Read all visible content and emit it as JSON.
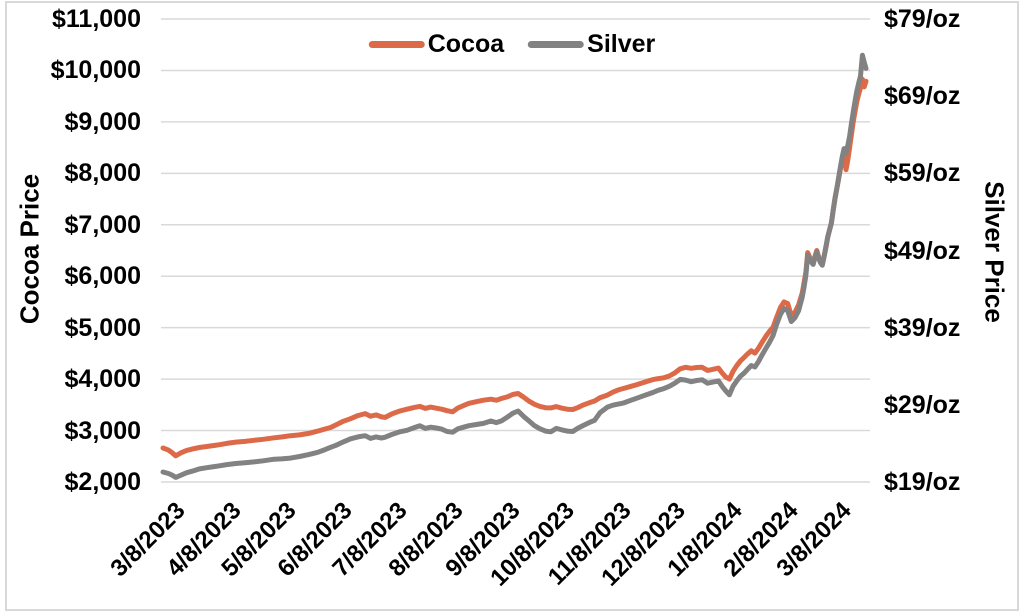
{
  "colors": {
    "cocoa": "#DC6A49",
    "silver": "#828282",
    "gridline": "#D9D9D9",
    "border": "#D8D8D8",
    "text": "#000000",
    "background": "#FFFFFF"
  },
  "chart_data": {
    "type": "line",
    "title": "",
    "legend_position": "top-center",
    "grid": "horizontal",
    "x_axis": {
      "tick_labels": [
        "3/8/2023",
        "4/8/2023",
        "5/8/2023",
        "6/8/2023",
        "7/8/2023",
        "8/8/2023",
        "9/8/2023",
        "10/8/2023",
        "11/8/2023",
        "12/8/2023",
        "1/8/2024",
        "2/8/2024",
        "3/8/2024"
      ],
      "tick_days": [
        0,
        31,
        61,
        92,
        122,
        153,
        184,
        214,
        245,
        275,
        306,
        337,
        366
      ],
      "domain_days": [
        0,
        386
      ]
    },
    "left_axis": {
      "label": "Cocoa Price",
      "tick_labels": [
        "$11,000",
        "$10,000",
        "$9,000",
        "$8,000",
        "$7,000",
        "$6,000",
        "$5,000",
        "$4,000",
        "$3,000",
        "$2,000"
      ],
      "min": 2000,
      "max": 11000
    },
    "right_axis": {
      "label": "Silver Price",
      "tick_labels": [
        "$79/oz",
        "$69/oz",
        "$59/oz",
        "$49/oz",
        "$39/oz",
        "$29/oz",
        "$19/oz"
      ],
      "min": 19,
      "max": 79
    },
    "series": [
      {
        "name": "Cocoa",
        "color": "#DC6A49",
        "axis": "left",
        "points": [
          [
            0,
            2660
          ],
          [
            3,
            2620
          ],
          [
            5,
            2570
          ],
          [
            7,
            2510
          ],
          [
            10,
            2570
          ],
          [
            13,
            2615
          ],
          [
            16,
            2640
          ],
          [
            20,
            2670
          ],
          [
            24,
            2690
          ],
          [
            28,
            2710
          ],
          [
            31,
            2725
          ],
          [
            35,
            2750
          ],
          [
            40,
            2775
          ],
          [
            45,
            2790
          ],
          [
            50,
            2810
          ],
          [
            55,
            2830
          ],
          [
            61,
            2860
          ],
          [
            65,
            2875
          ],
          [
            70,
            2900
          ],
          [
            75,
            2915
          ],
          [
            80,
            2945
          ],
          [
            85,
            2990
          ],
          [
            89,
            3030
          ],
          [
            92,
            3060
          ],
          [
            95,
            3110
          ],
          [
            99,
            3180
          ],
          [
            103,
            3230
          ],
          [
            107,
            3290
          ],
          [
            111,
            3330
          ],
          [
            114,
            3280
          ],
          [
            117,
            3305
          ],
          [
            120,
            3265
          ],
          [
            122,
            3255
          ],
          [
            126,
            3330
          ],
          [
            130,
            3380
          ],
          [
            134,
            3415
          ],
          [
            138,
            3450
          ],
          [
            141,
            3470
          ],
          [
            144,
            3430
          ],
          [
            147,
            3455
          ],
          [
            150,
            3435
          ],
          [
            153,
            3415
          ],
          [
            156,
            3385
          ],
          [
            159,
            3365
          ],
          [
            162,
            3440
          ],
          [
            165,
            3485
          ],
          [
            168,
            3530
          ],
          [
            172,
            3560
          ],
          [
            176,
            3590
          ],
          [
            180,
            3610
          ],
          [
            183,
            3590
          ],
          [
            186,
            3625
          ],
          [
            189,
            3655
          ],
          [
            192,
            3700
          ],
          [
            195,
            3720
          ],
          [
            198,
            3650
          ],
          [
            201,
            3570
          ],
          [
            204,
            3510
          ],
          [
            207,
            3470
          ],
          [
            210,
            3445
          ],
          [
            213,
            3440
          ],
          [
            216,
            3465
          ],
          [
            219,
            3435
          ],
          [
            222,
            3415
          ],
          [
            225,
            3410
          ],
          [
            228,
            3450
          ],
          [
            231,
            3500
          ],
          [
            234,
            3540
          ],
          [
            237,
            3575
          ],
          [
            240,
            3640
          ],
          [
            244,
            3690
          ],
          [
            247,
            3745
          ],
          [
            250,
            3790
          ],
          [
            253,
            3820
          ],
          [
            257,
            3860
          ],
          [
            260,
            3890
          ],
          [
            263,
            3925
          ],
          [
            266,
            3960
          ],
          [
            269,
            3990
          ],
          [
            272,
            4010
          ],
          [
            275,
            4025
          ],
          [
            278,
            4060
          ],
          [
            281,
            4120
          ],
          [
            284,
            4200
          ],
          [
            287,
            4230
          ],
          [
            290,
            4210
          ],
          [
            293,
            4225
          ],
          [
            296,
            4230
          ],
          [
            299,
            4170
          ],
          [
            302,
            4190
          ],
          [
            305,
            4215
          ],
          [
            307,
            4120
          ],
          [
            309,
            4040
          ],
          [
            311,
            4000
          ],
          [
            313,
            4150
          ],
          [
            315,
            4260
          ],
          [
            317,
            4350
          ],
          [
            319,
            4420
          ],
          [
            321,
            4490
          ],
          [
            323,
            4550
          ],
          [
            325,
            4505
          ],
          [
            327,
            4600
          ],
          [
            329,
            4720
          ],
          [
            331,
            4830
          ],
          [
            333,
            4930
          ],
          [
            335,
            5010
          ],
          [
            337,
            5210
          ],
          [
            339,
            5390
          ],
          [
            341,
            5500
          ],
          [
            343,
            5470
          ],
          [
            345,
            5230
          ],
          [
            347,
            5300
          ],
          [
            349,
            5440
          ],
          [
            351,
            5680
          ],
          [
            352,
            5880
          ],
          [
            353,
            6080
          ],
          [
            354,
            6460
          ],
          [
            355,
            6380
          ],
          [
            356,
            6300
          ],
          [
            357,
            6250
          ],
          [
            358,
            6390
          ],
          [
            359,
            6500
          ],
          [
            360,
            6380
          ],
          [
            361,
            6280
          ],
          [
            362,
            6230
          ],
          [
            363,
            6390
          ],
          [
            364,
            6550
          ],
          [
            365,
            6760
          ],
          [
            366,
            6900
          ],
          [
            367,
            7030
          ],
          [
            368,
            7280
          ],
          [
            369,
            7520
          ],
          [
            370,
            7710
          ],
          [
            371,
            7900
          ],
          [
            372,
            8090
          ],
          [
            373,
            8280
          ],
          [
            374,
            8420
          ],
          [
            375,
            8070
          ],
          [
            376,
            8260
          ],
          [
            377,
            8500
          ],
          [
            378,
            8750
          ],
          [
            379,
            9010
          ],
          [
            380,
            9210
          ],
          [
            381,
            9400
          ],
          [
            382,
            9540
          ],
          [
            383,
            9660
          ],
          [
            384,
            9830
          ],
          [
            385,
            9680
          ],
          [
            386,
            9790
          ]
        ]
      },
      {
        "name": "Silver",
        "color": "#828282",
        "axis": "right",
        "points": [
          [
            0,
            20.3
          ],
          [
            3,
            20.1
          ],
          [
            5,
            19.9
          ],
          [
            7,
            19.6
          ],
          [
            10,
            19.9
          ],
          [
            13,
            20.2
          ],
          [
            16,
            20.4
          ],
          [
            20,
            20.7
          ],
          [
            24,
            20.85
          ],
          [
            28,
            21.0
          ],
          [
            31,
            21.1
          ],
          [
            35,
            21.25
          ],
          [
            40,
            21.4
          ],
          [
            45,
            21.5
          ],
          [
            50,
            21.6
          ],
          [
            55,
            21.75
          ],
          [
            61,
            21.95
          ],
          [
            65,
            22.0
          ],
          [
            70,
            22.1
          ],
          [
            75,
            22.3
          ],
          [
            80,
            22.55
          ],
          [
            85,
            22.85
          ],
          [
            89,
            23.2
          ],
          [
            92,
            23.5
          ],
          [
            95,
            23.75
          ],
          [
            99,
            24.2
          ],
          [
            103,
            24.6
          ],
          [
            107,
            24.85
          ],
          [
            111,
            25.0
          ],
          [
            114,
            24.65
          ],
          [
            117,
            24.85
          ],
          [
            120,
            24.7
          ],
          [
            122,
            24.8
          ],
          [
            126,
            25.2
          ],
          [
            130,
            25.5
          ],
          [
            134,
            25.7
          ],
          [
            138,
            26.05
          ],
          [
            141,
            26.3
          ],
          [
            144,
            25.95
          ],
          [
            147,
            26.1
          ],
          [
            150,
            26.0
          ],
          [
            153,
            25.85
          ],
          [
            156,
            25.55
          ],
          [
            159,
            25.45
          ],
          [
            162,
            25.9
          ],
          [
            165,
            26.1
          ],
          [
            168,
            26.3
          ],
          [
            172,
            26.45
          ],
          [
            176,
            26.6
          ],
          [
            180,
            26.9
          ],
          [
            183,
            26.7
          ],
          [
            186,
            26.95
          ],
          [
            189,
            27.4
          ],
          [
            192,
            27.9
          ],
          [
            195,
            28.2
          ],
          [
            198,
            27.5
          ],
          [
            201,
            26.9
          ],
          [
            204,
            26.3
          ],
          [
            207,
            25.9
          ],
          [
            210,
            25.6
          ],
          [
            213,
            25.5
          ],
          [
            216,
            25.95
          ],
          [
            219,
            25.75
          ],
          [
            222,
            25.6
          ],
          [
            225,
            25.55
          ],
          [
            228,
            26.0
          ],
          [
            231,
            26.35
          ],
          [
            234,
            26.7
          ],
          [
            237,
            27.0
          ],
          [
            240,
            28.0
          ],
          [
            244,
            28.7
          ],
          [
            247,
            28.95
          ],
          [
            250,
            29.1
          ],
          [
            253,
            29.25
          ],
          [
            257,
            29.6
          ],
          [
            260,
            29.85
          ],
          [
            263,
            30.1
          ],
          [
            266,
            30.35
          ],
          [
            269,
            30.6
          ],
          [
            272,
            30.9
          ],
          [
            275,
            31.1
          ],
          [
            278,
            31.4
          ],
          [
            281,
            31.8
          ],
          [
            284,
            32.3
          ],
          [
            287,
            32.2
          ],
          [
            290,
            32.0
          ],
          [
            293,
            32.15
          ],
          [
            296,
            32.25
          ],
          [
            299,
            31.8
          ],
          [
            302,
            31.95
          ],
          [
            305,
            32.1
          ],
          [
            307,
            31.4
          ],
          [
            309,
            30.8
          ],
          [
            311,
            30.3
          ],
          [
            313,
            31.4
          ],
          [
            315,
            32.1
          ],
          [
            317,
            32.7
          ],
          [
            319,
            33.1
          ],
          [
            321,
            33.6
          ],
          [
            323,
            34.1
          ],
          [
            325,
            33.9
          ],
          [
            327,
            34.6
          ],
          [
            329,
            35.5
          ],
          [
            331,
            36.3
          ],
          [
            333,
            37.1
          ],
          [
            335,
            38.0
          ],
          [
            337,
            39.5
          ],
          [
            339,
            40.7
          ],
          [
            341,
            41.5
          ],
          [
            343,
            41.2
          ],
          [
            345,
            39.8
          ],
          [
            347,
            40.3
          ],
          [
            349,
            41.2
          ],
          [
            351,
            43.0
          ],
          [
            352,
            44.3
          ],
          [
            353,
            45.8
          ],
          [
            354,
            48.4
          ],
          [
            355,
            47.9
          ],
          [
            356,
            47.5
          ],
          [
            357,
            47.2
          ],
          [
            358,
            48.1
          ],
          [
            359,
            48.8
          ],
          [
            360,
            48.0
          ],
          [
            361,
            47.4
          ],
          [
            362,
            47.1
          ],
          [
            363,
            48.2
          ],
          [
            364,
            49.5
          ],
          [
            365,
            50.8
          ],
          [
            366,
            51.7
          ],
          [
            367,
            52.6
          ],
          [
            368,
            54.2
          ],
          [
            369,
            55.7
          ],
          [
            370,
            57.1
          ],
          [
            371,
            58.5
          ],
          [
            372,
            59.9
          ],
          [
            373,
            61.2
          ],
          [
            374,
            62.2
          ],
          [
            375,
            61.6
          ],
          [
            376,
            62.6
          ],
          [
            377,
            63.8
          ],
          [
            378,
            65.4
          ],
          [
            379,
            67.0
          ],
          [
            380,
            68.4
          ],
          [
            381,
            69.7
          ],
          [
            382,
            70.7
          ],
          [
            383,
            71.6
          ],
          [
            384,
            74.3
          ],
          [
            385,
            73.4
          ],
          [
            386,
            72.6
          ]
        ]
      }
    ]
  }
}
